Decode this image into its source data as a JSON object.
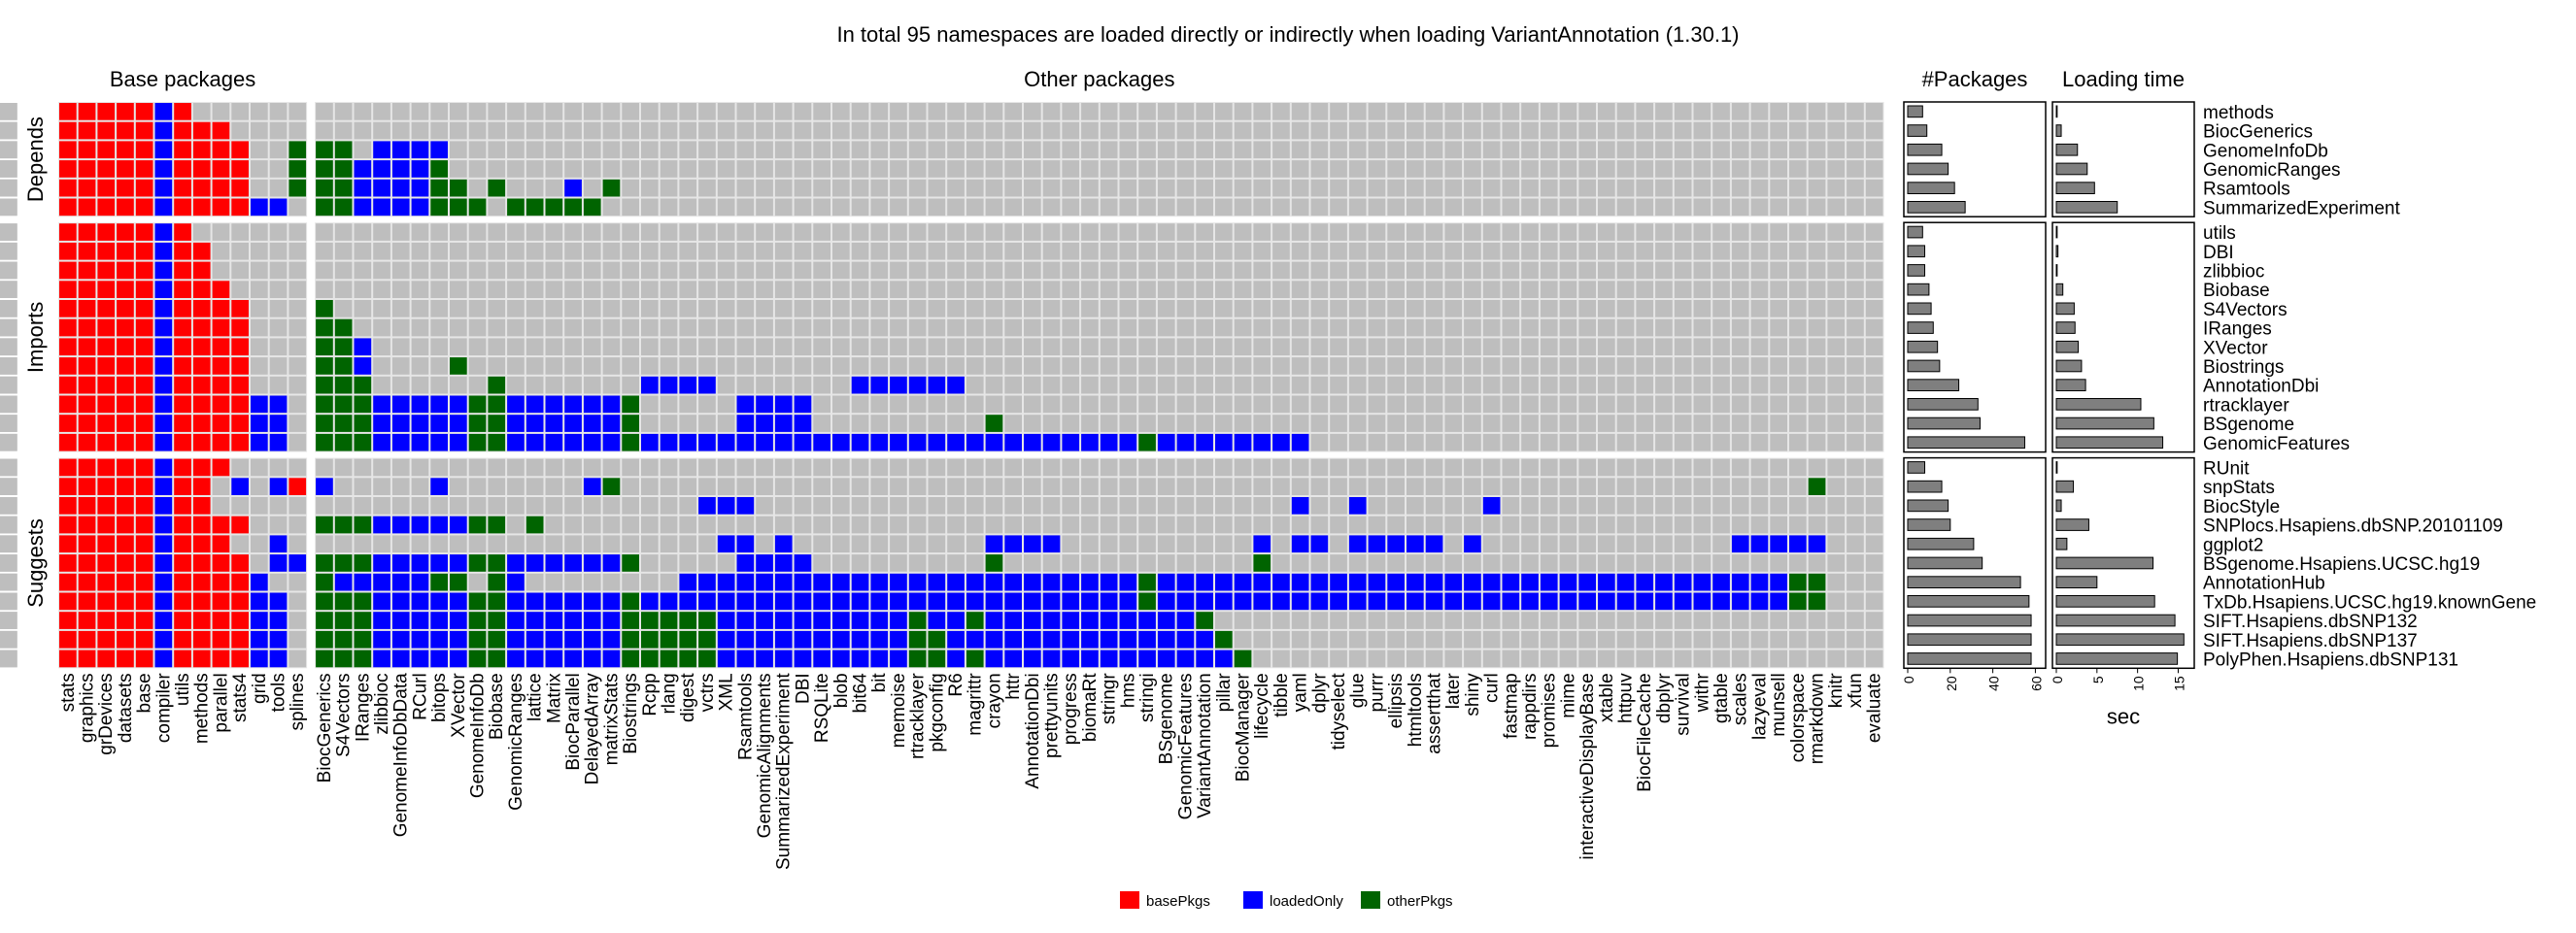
{
  "chart_data": {
    "type": "heatmap",
    "title": "In total 95 namespaces are loaded directly or indirectly when loading VariantAnnotation (1.30.1)",
    "column_groups": [
      {
        "label": "Base packages",
        "columns": [
          "stats",
          "graphics",
          "grDevices",
          "datasets",
          "base",
          "compiler",
          "utils",
          "methods",
          "parallel",
          "stats4",
          "grid",
          "tools",
          "splines"
        ]
      },
      {
        "label": "Other packages",
        "columns": [
          "BiocGenerics",
          "S4Vectors",
          "IRanges",
          "zlibbioc",
          "GenomeInfoDbData",
          "RCurl",
          "bitops",
          "XVector",
          "GenomeInfoDb",
          "Biobase",
          "GenomicRanges",
          "lattice",
          "Matrix",
          "BiocParallel",
          "DelayedArray",
          "matrixStats",
          "Biostrings",
          "Rcpp",
          "rlang",
          "digest",
          "vctrs",
          "XML",
          "Rsamtools",
          "GenomicAlignments",
          "SummarizedExperiment",
          "DBI",
          "RSQLite",
          "blob",
          "bit64",
          "bit",
          "memoise",
          "rtracklayer",
          "pkgconfig",
          "R6",
          "magrittr",
          "crayon",
          "httr",
          "AnnotationDbi",
          "prettyunits",
          "progress",
          "biomaRt",
          "stringr",
          "hms",
          "stringi",
          "BSgenome",
          "GenomicFeatures",
          "VariantAnnotation",
          "pillar",
          "BiocManager",
          "lifecycle",
          "tibble",
          "yaml",
          "dplyr",
          "tidyselect",
          "glue",
          "purrr",
          "ellipsis",
          "htmltools",
          "assertthat",
          "later",
          "shiny",
          "curl",
          "fastmap",
          "rappdirs",
          "promises",
          "mime",
          "interactiveDisplayBase",
          "xtable",
          "httpuv",
          "BiocFileCache",
          "dbplyr",
          "survival",
          "withr",
          "gtable",
          "scales",
          "lazyeval",
          "munsell",
          "colorspace",
          "rmarkdown",
          "knitr",
          "xfun",
          "evaluate"
        ]
      }
    ],
    "row_groups": [
      {
        "label": "Depends",
        "rows": [
          "methods",
          "BiocGenerics",
          "GenomeInfoDb",
          "GenomicRanges",
          "Rsamtools",
          "SummarizedExperiment"
        ]
      },
      {
        "label": "Imports",
        "rows": [
          "utils",
          "DBI",
          "zlibbioc",
          "Biobase",
          "S4Vectors",
          "IRanges",
          "XVector",
          "Biostrings",
          "AnnotationDbi",
          "rtracklayer",
          "BSgenome",
          "GenomicFeatures"
        ]
      },
      {
        "label": "Suggests",
        "rows": [
          "RUnit",
          "snpStats",
          "BiocStyle",
          "SNPlocs.Hsapiens.dbSNP.20101109",
          "ggplot2",
          "BSgenome.Hsapiens.UCSC.hg19",
          "AnnotationHub",
          "TxDb.Hsapiens.UCSC.hg19.knownGene",
          "SIFT.Hsapiens.dbSNP132",
          "SIFT.Hsapiens.dbSNP137",
          "PolyPhen.Hsapiens.dbSNP131"
        ]
      }
    ],
    "cell_codes": {
      "0": "not loaded",
      "1": "basePkgs",
      "2": "loadedOnly",
      "3": "otherPkgs"
    },
    "cells": [
      "1111121000000000000000000000000000000000000000000000000000000000000000000000000000000000000000000",
      "1111121110000000000000000000000000000000000000000000000000000000000000000000000000000000000000000",
      "1111121111003330222200000000000000000000000000000000000000000000000000000000000000000000000000000",
      "1111121111003332222300000000000000000000000000000000000000000000000000000000000000000000000000000",
      "1111121111003332222330300020300000000000000000000000000000000000000000000000000000000000000000000",
      "1111121111220332222333033333000000000000000000000000000000000000000000000000000000000000000000000",
      "1111121000000000000000000000000000000000000000000000000000000000000000000000000000000000000000000",
      "1111121100000000000000000000000000000000000000000000000000000000000000000000000000000000000000000",
      "1111121100000000000000000000000000000000000000000000000000000000000000000000000000000000000000000",
      "1111121110000000000000000000000000000000000000000000000000000000000000000000000000000000000000000",
      "1111121111000300000000000000000000000000000000000000000000000000000000000000000000000000000000000",
      "1111121111000330000000000000000000000000000000000000000000000000000000000000000000000000000000000",
      "1111121111000332000000000000000000000000000000000000000000000000000000000000000000000000000000000",
      "1111121111000332000030000000000000000000000000000000000000000000000000000000000000000000000000000",
      "1111121111000333000000300000002222000000022222200000000000000000000000000000000000000000000000000",
      "1111121111220333222223322222230000022220000000000000000000000000000000000000000000000000000000000",
      "1111121111220333222223322222230000022220000000003000000000000000000000000000000000000000000000000",
      "1111121111220333222223322222232222222222222222222222222232222222200000000000000000000000000000000",
      "1111121110000000000000000000000000000000000000000000000000000000000000000000000000000000000000000",
      "1111121102021200000200000002300000000000000000000000000000000000000000000000000000000000000300000",
      "1111121100000000000000000000000002220000000000000000000000000000200200000020000000000000000000000",
      "1111121111000333222223303000000000000000000000000000000000000000000000000000000000000000000000000",
      "1111121110020000000000000000000000220200000000002222000000000020220222220200000000000002222200000",
      "1111121111022333222223322222230000022220000000003000000000000030000000000000000000000000000000000",
      "1111121111200322222330320000000022222222222222222222222232222222222222222222222222222222223300000",
      "1111121111220333222223322222232222222222222222222222222232222222222222222222222222222222223300000",
      "1111121111220333222223322222233333222222222232232222222222230000000000000000000000000000000000000",
      "1111121111220333222223322222233333222222222233222222222222223000000000000000000000000000000000000",
      "1111121111220333222223322222233333222222222233232222222222222300000000000000000000000000000000000"
    ],
    "row_labels": [
      "methods",
      "BiocGenerics",
      "GenomeInfoDb",
      "GenomicRanges",
      "Rsamtools",
      "SummarizedExperiment",
      "utils",
      "DBI",
      "zlibbioc",
      "Biobase",
      "S4Vectors",
      "IRanges",
      "XVector",
      "Biostrings",
      "AnnotationDbi",
      "rtracklayer",
      "BSgenome",
      "GenomicFeatures",
      "RUnit",
      "snpStats",
      "BiocStyle",
      "SNPlocs.Hsapiens.dbSNP.20101109",
      "ggplot2",
      "BSgenome.Hsapiens.UCSC.hg19",
      "AnnotationHub",
      "TxDb.Hsapiens.UCSC.hg19.knownGene",
      "SIFT.Hsapiens.dbSNP132",
      "SIFT.Hsapiens.dbSNP137",
      "PolyPhen.Hsapiens.dbSNP131"
    ],
    "packages_panel": {
      "title": "#Packages",
      "xlim": [
        0,
        63
      ],
      "ticks": [
        "0",
        "20",
        "40",
        "60"
      ],
      "tick_values": [
        0,
        20,
        40,
        60
      ],
      "values": [
        7,
        9,
        16,
        19,
        22,
        27,
        7,
        8,
        8,
        10,
        11,
        12,
        14,
        15,
        24,
        33,
        34,
        55,
        8,
        16,
        19,
        20,
        31,
        35,
        53,
        57,
        58,
        58,
        58
      ]
    },
    "time_panel": {
      "title": "Loading time",
      "xlabel": "sec",
      "xlim": [
        0,
        16.5
      ],
      "ticks": [
        "0",
        "5",
        "10",
        "15"
      ],
      "tick_values": [
        0,
        5,
        10,
        15
      ],
      "values": [
        0.1,
        0.6,
        2.6,
        3.8,
        4.7,
        7.5,
        0.1,
        0.2,
        0.1,
        0.8,
        2.2,
        2.3,
        2.7,
        3.1,
        3.6,
        10.4,
        12.0,
        13.1,
        0.1,
        2.1,
        0.6,
        4.0,
        1.3,
        11.9,
        5.0,
        12.1,
        14.6,
        15.7,
        14.9
      ]
    },
    "legend": [
      {
        "label": "basePkgs",
        "code": "1",
        "color": "#ff0000"
      },
      {
        "label": "loadedOnly",
        "code": "2",
        "color": "#0000ff"
      },
      {
        "label": "otherPkgs",
        "code": "3",
        "color": "#006400"
      }
    ],
    "colors": {
      "empty": "#bebebe",
      "grid": "#e6e6e6",
      "bar": "#7f7f7f"
    }
  }
}
